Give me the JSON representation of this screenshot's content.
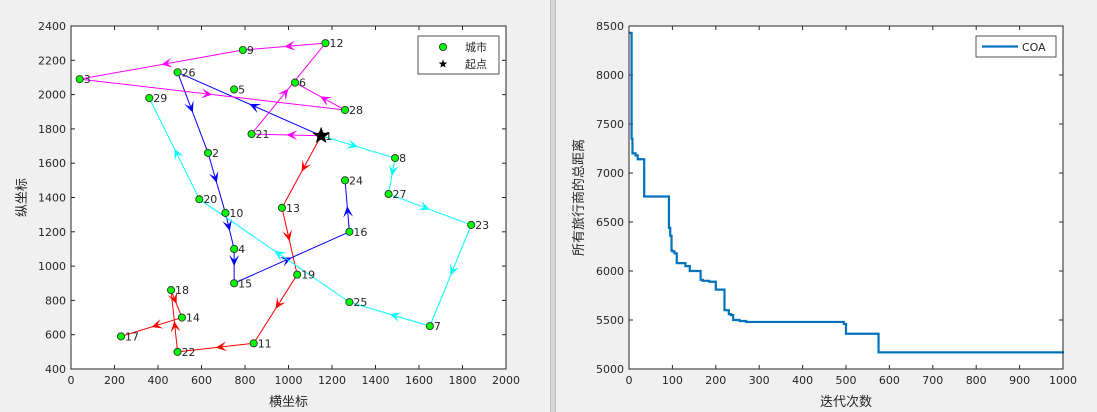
{
  "chart_data": [
    {
      "type": "scatter",
      "xlabel": "横坐标",
      "ylabel": "纵坐标",
      "xlim": [
        0,
        2000
      ],
      "ylim": [
        400,
        2400
      ],
      "xticks": [
        0,
        200,
        400,
        600,
        800,
        1000,
        1200,
        1400,
        1600,
        1800,
        2000
      ],
      "yticks": [
        400,
        600,
        800,
        1000,
        1200,
        1400,
        1600,
        1800,
        2000,
        2200,
        2400
      ],
      "legend": {
        "position": "top-right",
        "entries": [
          "城市",
          "起点"
        ]
      },
      "cities": [
        {
          "id": "1",
          "x": 1150,
          "y": 1760
        },
        {
          "id": "2",
          "x": 630,
          "y": 1660
        },
        {
          "id": "3",
          "x": 40,
          "y": 2090
        },
        {
          "id": "4",
          "x": 750,
          "y": 1100
        },
        {
          "id": "5",
          "x": 750,
          "y": 2030
        },
        {
          "id": "6",
          "x": 1030,
          "y": 2070
        },
        {
          "id": "7",
          "x": 1650,
          "y": 650
        },
        {
          "id": "8",
          "x": 1490,
          "y": 1630
        },
        {
          "id": "9",
          "x": 790,
          "y": 2260
        },
        {
          "id": "10",
          "x": 710,
          "y": 1310
        },
        {
          "id": "11",
          "x": 840,
          "y": 550
        },
        {
          "id": "12",
          "x": 1170,
          "y": 2300
        },
        {
          "id": "13",
          "x": 970,
          "y": 1340
        },
        {
          "id": "14",
          "x": 510,
          "y": 700
        },
        {
          "id": "15",
          "x": 750,
          "y": 900
        },
        {
          "id": "16",
          "x": 1280,
          "y": 1200
        },
        {
          "id": "17",
          "x": 230,
          "y": 590
        },
        {
          "id": "18",
          "x": 460,
          "y": 860
        },
        {
          "id": "19",
          "x": 1040,
          "y": 950
        },
        {
          "id": "20",
          "x": 590,
          "y": 1390
        },
        {
          "id": "21",
          "x": 830,
          "y": 1770
        },
        {
          "id": "22",
          "x": 490,
          "y": 500
        },
        {
          "id": "23",
          "x": 1840,
          "y": 1240
        },
        {
          "id": "24",
          "x": 1260,
          "y": 1500
        },
        {
          "id": "25",
          "x": 1280,
          "y": 790
        },
        {
          "id": "26",
          "x": 490,
          "y": 2130
        },
        {
          "id": "27",
          "x": 1460,
          "y": 1420
        },
        {
          "id": "28",
          "x": 1260,
          "y": 1910
        },
        {
          "id": "29",
          "x": 360,
          "y": 1980
        }
      ],
      "start": {
        "x": 1150,
        "y": 1760
      },
      "route_segments": [
        {
          "from": "1",
          "to": "13",
          "color": "#ff0000"
        },
        {
          "from": "13",
          "to": "19",
          "color": "#ff0000"
        },
        {
          "from": "19",
          "to": "11",
          "color": "#ff0000"
        },
        {
          "from": "11",
          "to": "22",
          "color": "#ff0000"
        },
        {
          "from": "22",
          "to": "18",
          "color": "#ff0000"
        },
        {
          "from": "18",
          "to": "14",
          "color": "#ff0000"
        },
        {
          "from": "14",
          "to": "17",
          "color": "#ff0000"
        },
        {
          "from": "1",
          "to": "26",
          "color": "#0000ff"
        },
        {
          "from": "26",
          "to": "2",
          "color": "#0000ff"
        },
        {
          "from": "2",
          "to": "10",
          "color": "#0000ff"
        },
        {
          "from": "10",
          "to": "4",
          "color": "#0000ff"
        },
        {
          "from": "4",
          "to": "15",
          "color": "#0000ff"
        },
        {
          "from": "15",
          "to": "16",
          "color": "#0000ff"
        },
        {
          "from": "16",
          "to": "24",
          "color": "#0000ff"
        },
        {
          "from": "1",
          "to": "21",
          "color": "#ff00ff"
        },
        {
          "from": "21",
          "to": "12",
          "color": "#ff00ff"
        },
        {
          "from": "12",
          "to": "9",
          "color": "#ff00ff"
        },
        {
          "from": "9",
          "to": "3",
          "color": "#ff00ff"
        },
        {
          "from": "3",
          "to": "28",
          "color": "#ff00ff"
        },
        {
          "from": "28",
          "to": "6",
          "color": "#ff00ff"
        },
        {
          "from": "1",
          "to": "8",
          "color": "#00ffff"
        },
        {
          "from": "8",
          "to": "27",
          "color": "#00ffff"
        },
        {
          "from": "27",
          "to": "23",
          "color": "#00ffff"
        },
        {
          "from": "23",
          "to": "7",
          "color": "#00ffff"
        },
        {
          "from": "7",
          "to": "25",
          "color": "#00ffff"
        },
        {
          "from": "25",
          "to": "20",
          "color": "#00ffff"
        },
        {
          "from": "20",
          "to": "29",
          "color": "#00ffff"
        }
      ],
      "colors": {
        "city_fill": "#00ff00",
        "city_edge": "#333333",
        "start": "#000000"
      }
    },
    {
      "type": "line",
      "xlabel": "迭代次数",
      "ylabel": "所有旅行商的总距离",
      "xlim": [
        0,
        1000
      ],
      "ylim": [
        5000,
        8500
      ],
      "xticks": [
        0,
        100,
        200,
        300,
        400,
        500,
        600,
        700,
        800,
        900,
        1000
      ],
      "yticks": [
        5000,
        5500,
        6000,
        6500,
        7000,
        7500,
        8000,
        8500
      ],
      "legend": {
        "position": "top-right"
      },
      "series": [
        {
          "name": "COA",
          "color": "#0072bd",
          "x": [
            1,
            3,
            6,
            8,
            15,
            20,
            30,
            35,
            90,
            92,
            95,
            98,
            100,
            105,
            110,
            130,
            140,
            155,
            165,
            170,
            175,
            185,
            200,
            215,
            220,
            230,
            235,
            240,
            255,
            270,
            480,
            495,
            500,
            570,
            575,
            1000
          ],
          "y": [
            8430,
            8430,
            7350,
            7200,
            7180,
            7140,
            7140,
            6760,
            6760,
            6440,
            6360,
            6210,
            6200,
            6180,
            6080,
            6050,
            6000,
            6000,
            5910,
            5900,
            5900,
            5890,
            5810,
            5810,
            5600,
            5560,
            5550,
            5500,
            5490,
            5480,
            5480,
            5460,
            5360,
            5360,
            5170,
            5160
          ]
        }
      ]
    }
  ]
}
